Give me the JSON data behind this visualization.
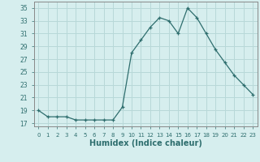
{
  "x": [
    0,
    1,
    2,
    3,
    4,
    5,
    6,
    7,
    8,
    9,
    10,
    11,
    12,
    13,
    14,
    15,
    16,
    17,
    18,
    19,
    20,
    21,
    22,
    23
  ],
  "y": [
    19,
    18,
    18,
    18,
    17.5,
    17.5,
    17.5,
    17.5,
    17.5,
    19.5,
    28,
    30,
    32,
    33.5,
    33,
    31,
    35,
    33.5,
    31,
    28.5,
    26.5,
    24.5,
    23,
    21.5
  ],
  "xlabel": "Humidex (Indice chaleur)",
  "bg_color": "#d6eeee",
  "grid_color": "#b8d8d8",
  "line_color": "#2e6e6e",
  "marker": "+",
  "ylim": [
    16.5,
    36.0
  ],
  "yticks": [
    17,
    19,
    21,
    23,
    25,
    27,
    29,
    31,
    33,
    35
  ],
  "xlim": [
    -0.5,
    23.5
  ],
  "xticks": [
    0,
    1,
    2,
    3,
    4,
    5,
    6,
    7,
    8,
    9,
    10,
    11,
    12,
    13,
    14,
    15,
    16,
    17,
    18,
    19,
    20,
    21,
    22,
    23
  ]
}
